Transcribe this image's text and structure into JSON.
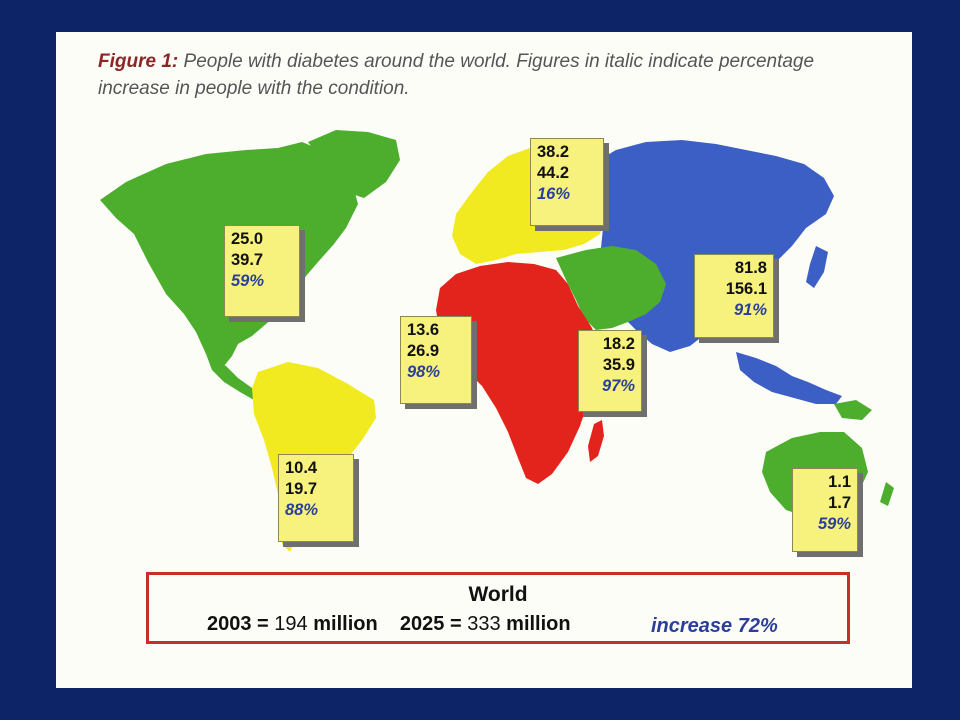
{
  "caption": {
    "label": "Figure 1:",
    "text": "People with diabetes around the world. Figures in italic indicate percentage increase in people with the condition."
  },
  "regions": [
    {
      "id": "north-america",
      "v2003": "25.0",
      "v2025": "39.7",
      "pct": "59%"
    },
    {
      "id": "europe",
      "v2003": "38.2",
      "v2025": "44.2",
      "pct": "16%"
    },
    {
      "id": "africa",
      "v2003": "13.6",
      "v2025": "26.9",
      "pct": "98%"
    },
    {
      "id": "middle-east",
      "v2003": "18.2",
      "v2025": "35.9",
      "pct": "97%"
    },
    {
      "id": "asia",
      "v2003": "81.8",
      "v2025": "156.1",
      "pct": "91%"
    },
    {
      "id": "south-america",
      "v2003": "10.4",
      "v2025": "19.7",
      "pct": "88%"
    },
    {
      "id": "oceania",
      "v2003": "1.1",
      "v2025": "1.7",
      "pct": "59%"
    }
  ],
  "world": {
    "title": "World",
    "y2003_label": "2003 =",
    "y2003_value": "194",
    "y2025_label": "2025 =",
    "y2025_value": "333",
    "unit": "million",
    "increase": "increase 72%"
  },
  "colors": {
    "background": "#0d2466",
    "north_america": "#4cae2c",
    "south_america": "#f1ea21",
    "europe": "#f1ea21",
    "africa": "#e3241c",
    "middle_east": "#4cae2c",
    "asia": "#3c5fc6",
    "oceania": "#4cae2c",
    "percent_text": "#2b3f9a",
    "world_border": "#c5302b"
  }
}
